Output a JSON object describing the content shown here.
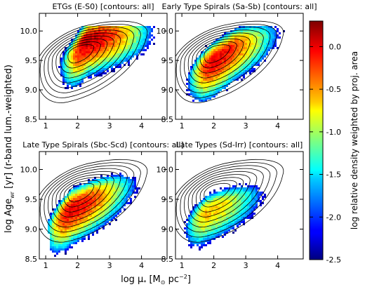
{
  "figure": {
    "ylabel_main": "log Age",
    "ylabel_sub": "wr",
    "ylabel_tail": " [yr] (r-band lum.-weighted)",
    "xlabel_main": "log μ",
    "xlabel_star": "*",
    "xlabel_unit": " [M",
    "xlabel_sun": "⊙",
    "xlabel_pc": " pc",
    "xlabel_exp": "−2",
    "xlabel_close": "]",
    "colorbar_label": "log relative density weighted by proj. area"
  },
  "chart_data": [
    {
      "type": "heatmap",
      "title": "ETGs (E-S0) [contours: all]",
      "xlim": [
        0.8,
        4.8
      ],
      "ylim": [
        8.5,
        10.3
      ],
      "xticks": [
        1,
        2,
        3,
        4
      ],
      "yticks": [
        8.5,
        9.0,
        9.5,
        10.0
      ],
      "xticklabels": [
        "1",
        "2",
        "3",
        "4"
      ],
      "yticklabels": [
        "8.5",
        "9.0",
        "9.5",
        "10.0"
      ],
      "peak": [
        2.3,
        9.9
      ],
      "peak_log_density": 0.1,
      "ridge": [
        [
          1.9,
          9.6
        ],
        [
          2.3,
          9.85
        ],
        [
          3.0,
          9.95
        ],
        [
          4.0,
          10.0
        ]
      ]
    },
    {
      "type": "heatmap",
      "title": "Early Type Spirals (Sa-Sb) [contours: all]",
      "xlim": [
        0.8,
        4.8
      ],
      "ylim": [
        8.5,
        10.3
      ],
      "xticks": [
        1,
        2,
        3,
        4
      ],
      "yticks": [
        8.5,
        9.0,
        9.5,
        10.0
      ],
      "xticklabels": [
        "1",
        "2",
        "3",
        "4"
      ],
      "yticklabels": [
        "8.5",
        "9.0",
        "9.5",
        "10.0"
      ],
      "peak": [
        2.0,
        9.5
      ],
      "peak_log_density": 0.0,
      "ridge": [
        [
          1.5,
          9.3
        ],
        [
          2.0,
          9.5
        ],
        [
          2.7,
          9.75
        ],
        [
          3.8,
          9.95
        ]
      ]
    },
    {
      "type": "heatmap",
      "title": "Late Type Spirals (Sbc-Scd) [contours: all]",
      "xlim": [
        0.8,
        4.8
      ],
      "ylim": [
        8.5,
        10.3
      ],
      "xticks": [
        1,
        2,
        3,
        4
      ],
      "yticks": [
        8.5,
        9.0,
        9.5,
        10.0
      ],
      "xticklabels": [
        "1",
        "2",
        "3",
        "4"
      ],
      "yticklabels": [
        "8.5",
        "9.0",
        "9.5",
        "10.0"
      ],
      "peak": [
        1.8,
        9.35
      ],
      "peak_log_density": 0.0,
      "ridge": [
        [
          1.2,
          9.05
        ],
        [
          1.8,
          9.35
        ],
        [
          2.6,
          9.55
        ],
        [
          3.6,
          9.75
        ]
      ]
    },
    {
      "type": "heatmap",
      "title": "Late Types (Sd-Irr) [contours: all]",
      "xlim": [
        0.8,
        4.8
      ],
      "ylim": [
        8.5,
        10.3
      ],
      "xticks": [
        1,
        2,
        3,
        4
      ],
      "yticks": [
        8.5,
        9.0,
        9.5,
        10.0
      ],
      "xticklabels": [
        "1",
        "2",
        "3",
        "4"
      ],
      "yticklabels": [
        "8.5",
        "9.0",
        "9.5",
        "10.0"
      ],
      "peak": [
        1.8,
        9.3
      ],
      "peak_log_density": -0.6,
      "ridge": [
        [
          1.3,
          9.1
        ],
        [
          1.8,
          9.3
        ],
        [
          2.5,
          9.45
        ],
        [
          3.4,
          9.6
        ]
      ]
    }
  ],
  "colorbar": {
    "colormap": "jet",
    "range": [
      -2.5,
      0.3
    ],
    "ticks": [
      0.0,
      -0.5,
      -1.0,
      -1.5,
      -2.0,
      -2.5
    ],
    "ticklabels": [
      "0.0",
      "-0.5",
      "-1.0",
      "-1.5",
      "-2.0",
      "-2.5"
    ]
  },
  "contours": {
    "color": "#000000",
    "levels_label": "all",
    "center": [
      2.0,
      9.65
    ],
    "levels": 9
  }
}
